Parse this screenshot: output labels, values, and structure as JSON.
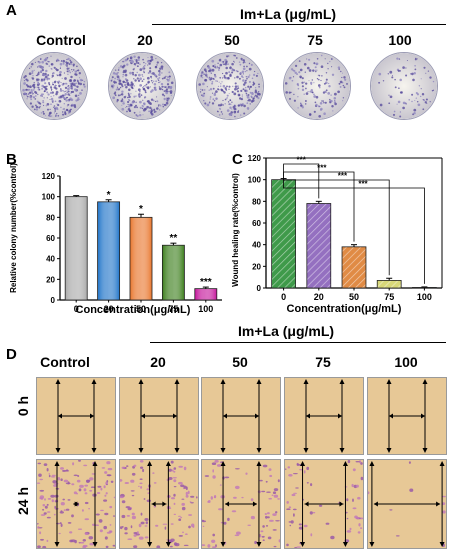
{
  "panelA": {
    "letter": "A",
    "header": "Im+La (μg/mL)",
    "columns": [
      "Control",
      "20",
      "50",
      "75",
      "100"
    ],
    "colony_density": [
      0.95,
      0.85,
      0.7,
      0.35,
      0.18
    ]
  },
  "panelD": {
    "letter": "D",
    "header": "Im+La (μg/mL)",
    "columns": [
      "Control",
      "20",
      "50",
      "75",
      "100"
    ],
    "rows": [
      "0 h",
      "24 h"
    ],
    "gap_24h_fraction": [
      0.12,
      0.24,
      0.46,
      0.55,
      0.9
    ]
  },
  "chart_data": [
    {
      "panel": "B",
      "type": "bar",
      "categories": [
        "0",
        "20",
        "50",
        "75",
        "100"
      ],
      "values": [
        100,
        95,
        80,
        53,
        11
      ],
      "errors": [
        1,
        2,
        3,
        2,
        1.5
      ],
      "significance": [
        "",
        "*",
        "*",
        "**",
        "***"
      ],
      "colors": [
        "#a9a9a9",
        "#1e73c8",
        "#e8742a",
        "#3a7d1a",
        "#c4139a"
      ],
      "xlabel": "Concentration(μg/mL)",
      "ylabel": "Relative colony number(%control)",
      "ylim": [
        0,
        120
      ],
      "yticks": [
        0,
        20,
        40,
        60,
        80,
        100,
        120
      ]
    },
    {
      "panel": "C",
      "type": "bar",
      "categories": [
        "0",
        "20",
        "50",
        "75",
        "100"
      ],
      "values": [
        100,
        78,
        38,
        7,
        0.5
      ],
      "errors": [
        1,
        2,
        2,
        2,
        0.5
      ],
      "colors": [
        "#3f9a4a",
        "#9470c0",
        "#e08b45",
        "#d8d878",
        "#3b6e9e"
      ],
      "comparisons": [
        {
          "from": "0",
          "to": "20",
          "label": "***"
        },
        {
          "from": "0",
          "to": "50",
          "label": "***"
        },
        {
          "from": "0",
          "to": "75",
          "label": "***"
        },
        {
          "from": "0",
          "to": "100",
          "label": "***"
        }
      ],
      "xlabel": "Concentration(μg/mL)",
      "ylabel": "Wound healing rate(%control)",
      "ylim": [
        0,
        120
      ],
      "yticks": [
        0,
        20,
        40,
        60,
        80,
        100,
        120
      ]
    }
  ]
}
